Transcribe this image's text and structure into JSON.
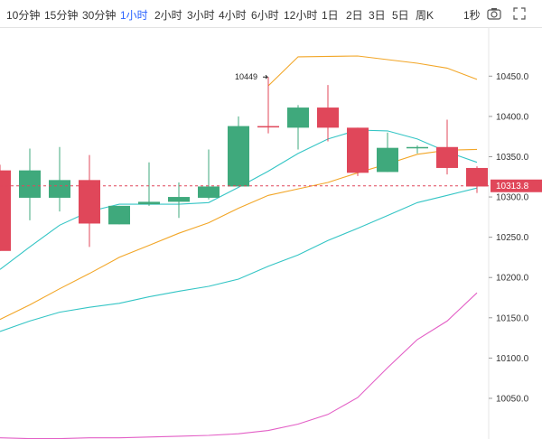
{
  "toolbar": {
    "timeframes": [
      {
        "label": "10分钟",
        "active": false
      },
      {
        "label": "15分钟",
        "active": false
      },
      {
        "label": "30分钟",
        "active": false
      },
      {
        "label": "1小时",
        "active": true
      },
      {
        "label": "2小时",
        "active": false
      },
      {
        "label": "3小时",
        "active": false
      },
      {
        "label": "4小时",
        "active": false
      },
      {
        "label": "6小时",
        "active": false
      },
      {
        "label": "12小时",
        "active": false
      },
      {
        "label": "1日",
        "active": false
      },
      {
        "label": "2日",
        "active": false
      },
      {
        "label": "3日",
        "active": false
      },
      {
        "label": "5日",
        "active": false
      },
      {
        "label": "周K",
        "active": false
      }
    ],
    "interval_label": "1秒",
    "icons": [
      "camera-icon",
      "fullscreen-icon"
    ]
  },
  "colors": {
    "up": "#3fa97c",
    "down": "#e0475a",
    "ma_yellow": "#f2a627",
    "ma_teal": "#34c5c5",
    "ma_pink": "#e35fc6",
    "price_line": "#e0475a",
    "active_tab": "#2962ff"
  },
  "chart_data": {
    "type": "candlestick",
    "y_axis": {
      "range": [
        10000,
        10510
      ],
      "ticks": [
        10050,
        10100,
        10150,
        10200,
        10250,
        10300,
        10350,
        10400,
        10450
      ],
      "tick_labels": [
        "10050.0",
        "10100.0",
        "10150.0",
        "10200.0",
        "10250.0",
        "10300.0",
        "10350.0",
        "10400.0",
        "10450.0"
      ]
    },
    "current_price": 10313.8,
    "current_price_label": "10313.8",
    "annotation": {
      "text": "10449",
      "candle_index": 8,
      "value": 10449
    },
    "candles": [
      {
        "o": 10333,
        "h": 10340,
        "l": 10233,
        "c": 10233
      },
      {
        "o": 10299,
        "h": 10360,
        "l": 10271,
        "c": 10333
      },
      {
        "o": 10299,
        "h": 10362,
        "l": 10282,
        "c": 10321
      },
      {
        "o": 10321,
        "h": 10352,
        "l": 10238,
        "c": 10267
      },
      {
        "o": 10266,
        "h": 10289,
        "l": 10266,
        "c": 10289
      },
      {
        "o": 10291,
        "h": 10343,
        "l": 10289,
        "c": 10294
      },
      {
        "o": 10294,
        "h": 10318,
        "l": 10274,
        "c": 10300
      },
      {
        "o": 10299,
        "h": 10359,
        "l": 10297,
        "c": 10313
      },
      {
        "o": 10313,
        "h": 10400,
        "l": 10313,
        "c": 10388
      },
      {
        "o": 10388,
        "h": 10449,
        "l": 10379,
        "c": 10387
      },
      {
        "o": 10386,
        "h": 10414,
        "l": 10359,
        "c": 10411
      },
      {
        "o": 10411,
        "h": 10439,
        "l": 10369,
        "c": 10386
      },
      {
        "o": 10386,
        "h": 10386,
        "l": 10326,
        "c": 10330
      },
      {
        "o": 10331,
        "h": 10380,
        "l": 10331,
        "c": 10361
      },
      {
        "o": 10361,
        "h": 10364,
        "l": 10354,
        "c": 10362
      },
      {
        "o": 10362,
        "h": 10396,
        "l": 10328,
        "c": 10336
      },
      {
        "o": 10336,
        "h": 10338,
        "l": 10305,
        "c": 10313
      }
    ],
    "moving_averages": [
      {
        "color": "#f2a627",
        "points": [
          [
            0,
            10438
          ],
          [
            1,
            10474
          ],
          [
            3,
            10475
          ],
          [
            5,
            10466
          ],
          [
            6,
            10460
          ],
          [
            7,
            10446
          ]
        ],
        "offset_x": 9
      },
      {
        "color": "#f2a627",
        "values": [
          10148,
          10166,
          10186,
          10205,
          10225,
          10240,
          10255,
          10268,
          10286,
          10302,
          10310,
          10318,
          10330,
          10341,
          10353,
          10358,
          10359
        ]
      },
      {
        "color": "#34c5c5",
        "values": [
          10210,
          10238,
          10265,
          10282,
          10291,
          10291,
          10291,
          10293,
          10312,
          10332,
          10354,
          10372,
          10383,
          10382,
          10372,
          10356,
          10343
        ]
      },
      {
        "color": "#34c5c5",
        "values": [
          10133,
          10146,
          10157,
          10163,
          10168,
          10176,
          10183,
          10189,
          10198,
          10214,
          10228,
          10246,
          10261,
          10277,
          10293,
          10302,
          10311
        ]
      },
      {
        "color": "#e35fc6",
        "values": [
          10001,
          10000,
          10000,
          10001,
          10001,
          10002,
          10003,
          10004,
          10006,
          10010,
          10018,
          10030,
          10051,
          10088,
          10123,
          10146,
          10181
        ]
      }
    ]
  }
}
